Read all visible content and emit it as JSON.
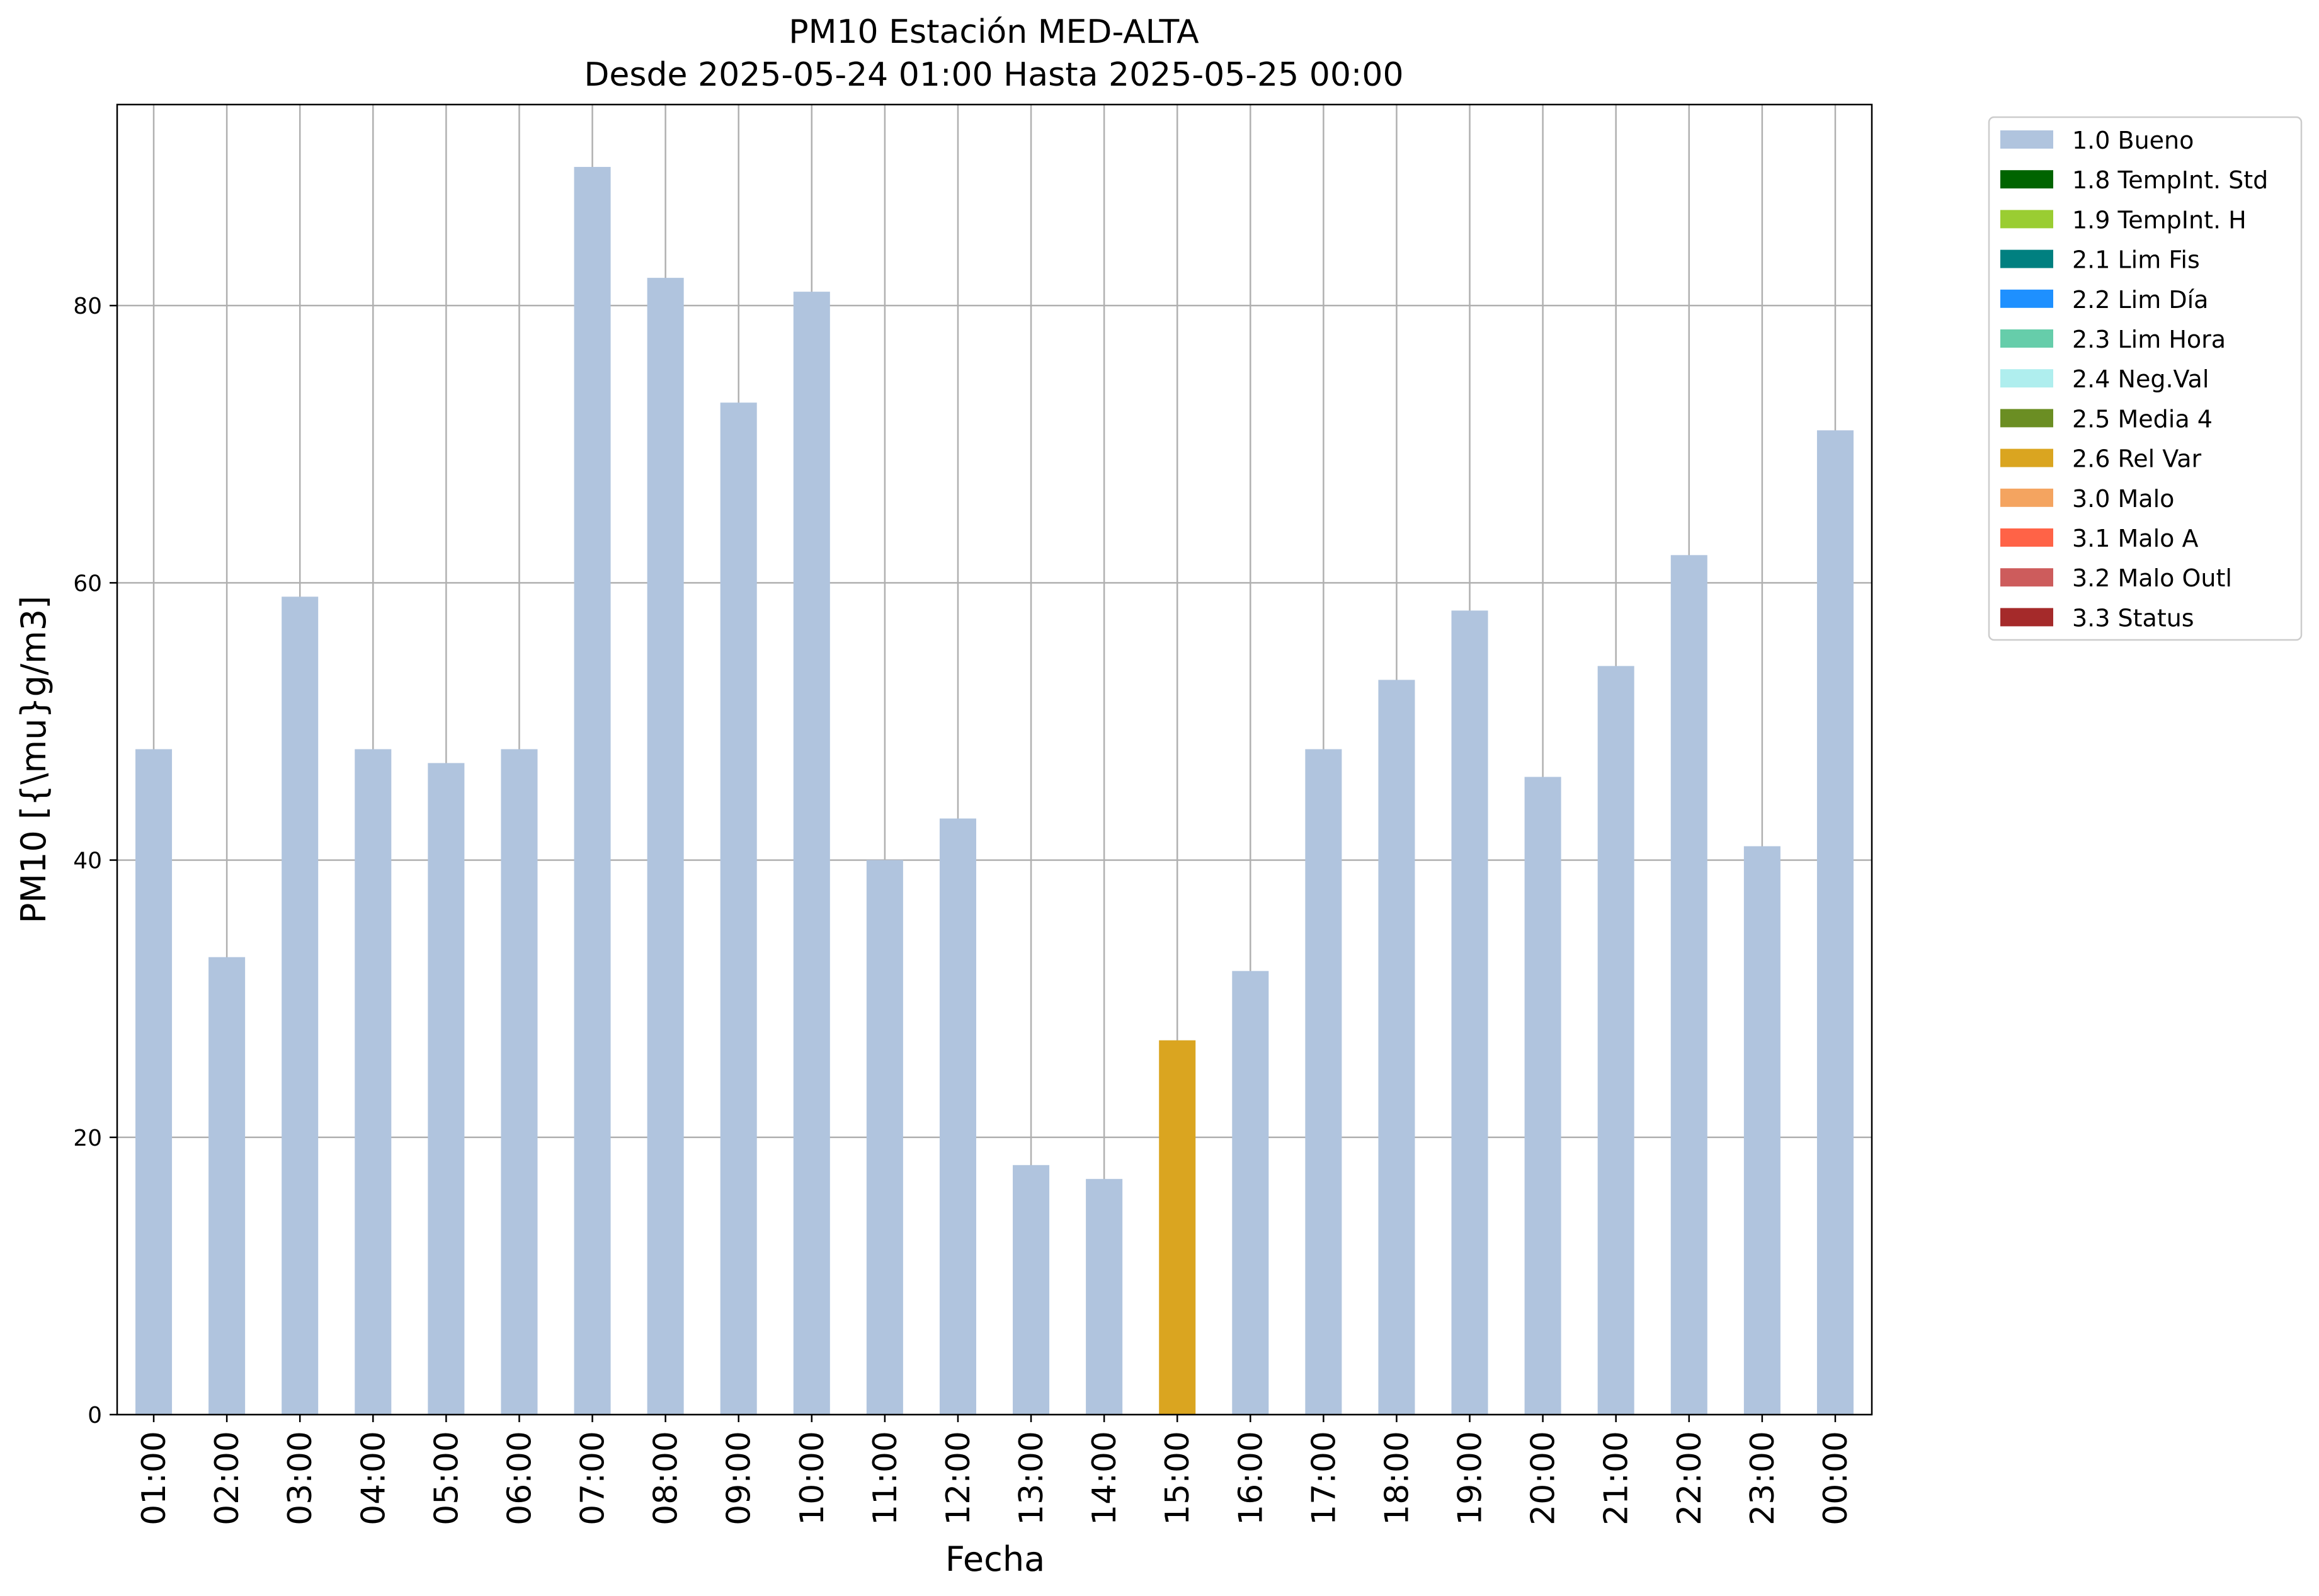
{
  "chart_data": {
    "type": "bar",
    "title": "PM10 Estación MED-ALTA",
    "subtitle": "Desde 2025-05-24 01:00 Hasta 2025-05-25 00:00",
    "xlabel": "Fecha",
    "ylabel": "PM10 [{\\mu}g/m3]",
    "ylim": [
      0,
      94.5
    ],
    "yticks": [
      0,
      20,
      40,
      60,
      80
    ],
    "grid": true,
    "legend_position": "outside-top-right",
    "categories": [
      "01:00",
      "02:00",
      "03:00",
      "04:00",
      "05:00",
      "06:00",
      "07:00",
      "08:00",
      "09:00",
      "10:00",
      "11:00",
      "12:00",
      "13:00",
      "14:00",
      "15:00",
      "16:00",
      "17:00",
      "18:00",
      "19:00",
      "20:00",
      "21:00",
      "22:00",
      "23:00",
      "00:00"
    ],
    "values": [
      48,
      33,
      59,
      48,
      47,
      48,
      90,
      82,
      73,
      81,
      40,
      43,
      18,
      17,
      27,
      32,
      48,
      53,
      58,
      46,
      54,
      62,
      41,
      71
    ],
    "bar_flags": [
      "1.0 Bueno",
      "1.0 Bueno",
      "1.0 Bueno",
      "1.0 Bueno",
      "1.0 Bueno",
      "1.0 Bueno",
      "1.0 Bueno",
      "1.0 Bueno",
      "1.0 Bueno",
      "1.0 Bueno",
      "1.0 Bueno",
      "1.0 Bueno",
      "1.0 Bueno",
      "1.0 Bueno",
      "2.6 Rel Var",
      "1.0 Bueno",
      "1.0 Bueno",
      "1.0 Bueno",
      "1.0 Bueno",
      "1.0 Bueno",
      "1.0 Bueno",
      "1.0 Bueno",
      "1.0 Bueno",
      "1.0 Bueno"
    ],
    "legend": [
      {
        "label": "1.0 Bueno",
        "color": "#b0c4de"
      },
      {
        "label": "1.8 TempInt. Std",
        "color": "#006400"
      },
      {
        "label": "1.9 TempInt. H",
        "color": "#9acd32"
      },
      {
        "label": "2.1 Lim Fis",
        "color": "#008080"
      },
      {
        "label": "2.2 Lim Día",
        "color": "#1e90ff"
      },
      {
        "label": "2.3 Lim Hora",
        "color": "#66cdaa"
      },
      {
        "label": "2.4 Neg.Val",
        "color": "#afeeee"
      },
      {
        "label": "2.5 Media 4",
        "color": "#6b8e23"
      },
      {
        "label": "2.6 Rel Var",
        "color": "#daa520"
      },
      {
        "label": "3.0 Malo",
        "color": "#f4a460"
      },
      {
        "label": "3.1 Malo A",
        "color": "#ff6347"
      },
      {
        "label": "3.2 Malo Outl",
        "color": "#cd5c5c"
      },
      {
        "label": "3.3 Status",
        "color": "#a52a2a"
      }
    ]
  }
}
